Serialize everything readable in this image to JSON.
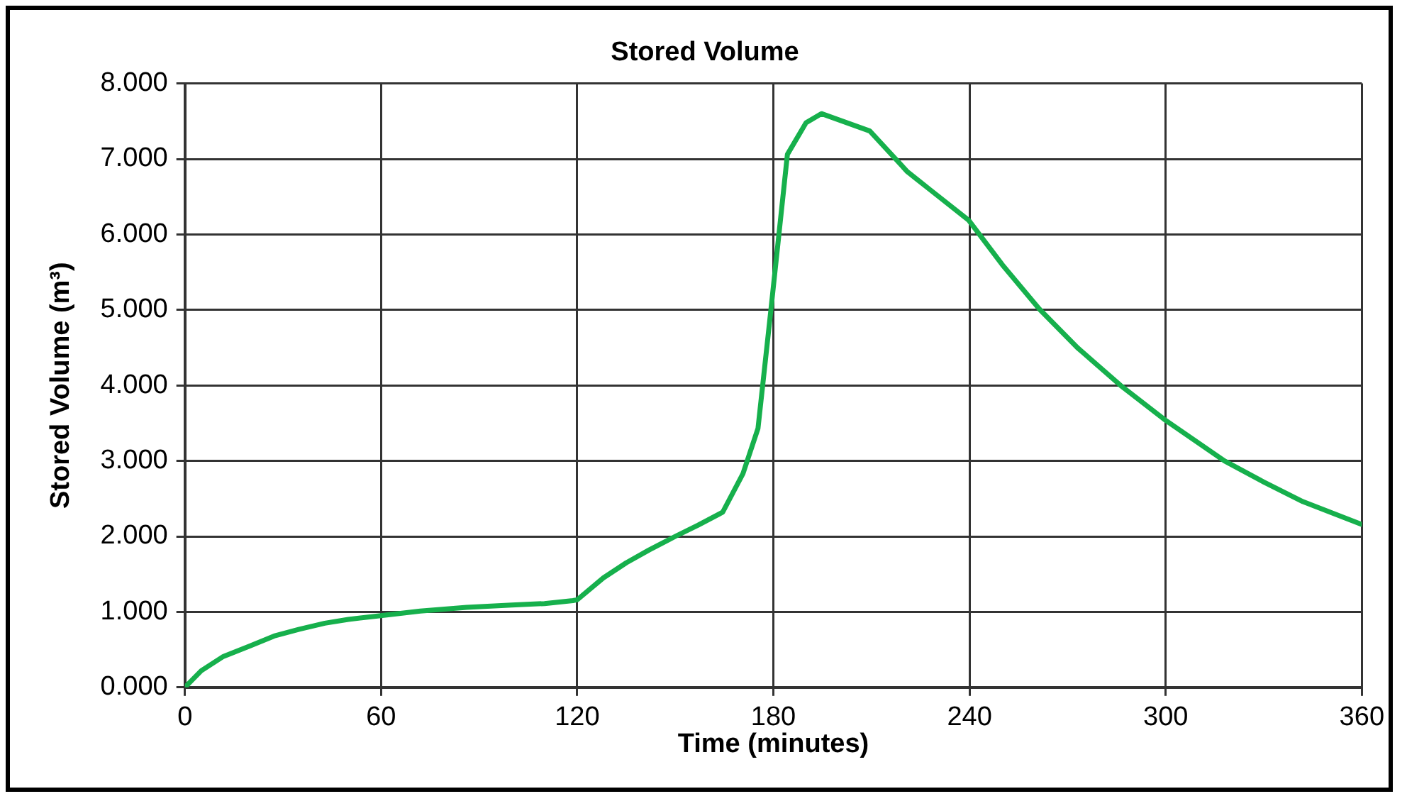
{
  "chart_data": {
    "type": "line",
    "title": "Stored Volume",
    "xlabel": "Time (minutes)",
    "ylabel": "Stored Volume (m³)",
    "x": [
      0,
      5,
      11.8,
      20,
      27.3,
      35,
      42.8,
      50,
      59.9,
      72,
      86.2,
      100,
      110,
      118.7,
      120,
      128,
      135,
      142,
      150,
      157,
      164.5,
      170.7,
      175.3,
      179.2,
      184.3,
      190,
      194.7,
      209.5,
      221,
      228,
      239.7,
      250,
      261.4,
      273,
      286.2,
      300.2,
      318,
      330,
      342,
      359.9
    ],
    "series": [
      {
        "color": "#16b04c",
        "values": [
          0,
          0.22,
          0.41,
          0.55,
          0.68,
          0.77,
          0.85,
          0.9,
          0.95,
          1.01,
          1.06,
          1.09,
          1.11,
          1.15,
          1.16,
          1.45,
          1.65,
          1.82,
          2.0,
          2.15,
          2.32,
          2.83,
          3.43,
          4.98,
          7.06,
          7.48,
          7.6,
          7.37,
          6.83,
          6.59,
          6.19,
          5.6,
          5.01,
          4.5,
          4.0,
          3.53,
          3.0,
          2.72,
          2.46,
          2.16
        ]
      }
    ],
    "xlim": [
      0,
      360
    ],
    "xticks": [
      0,
      60,
      120,
      180,
      240,
      300,
      360
    ],
    "ylim": [
      0,
      8
    ],
    "yticks": [
      {
        "value": 0,
        "label": "0.000"
      },
      {
        "value": 1,
        "label": "1.000"
      },
      {
        "value": 2,
        "label": "2.000"
      },
      {
        "value": 3,
        "label": "3.000"
      },
      {
        "value": 4,
        "label": "4.000"
      },
      {
        "value": 5,
        "label": "5.000"
      },
      {
        "value": 6,
        "label": "6.000"
      },
      {
        "value": 7,
        "label": "7.000"
      },
      {
        "value": 8,
        "label": "8.000"
      }
    ],
    "grid": true,
    "legend": false,
    "marker": "none",
    "line_style": "solid"
  }
}
